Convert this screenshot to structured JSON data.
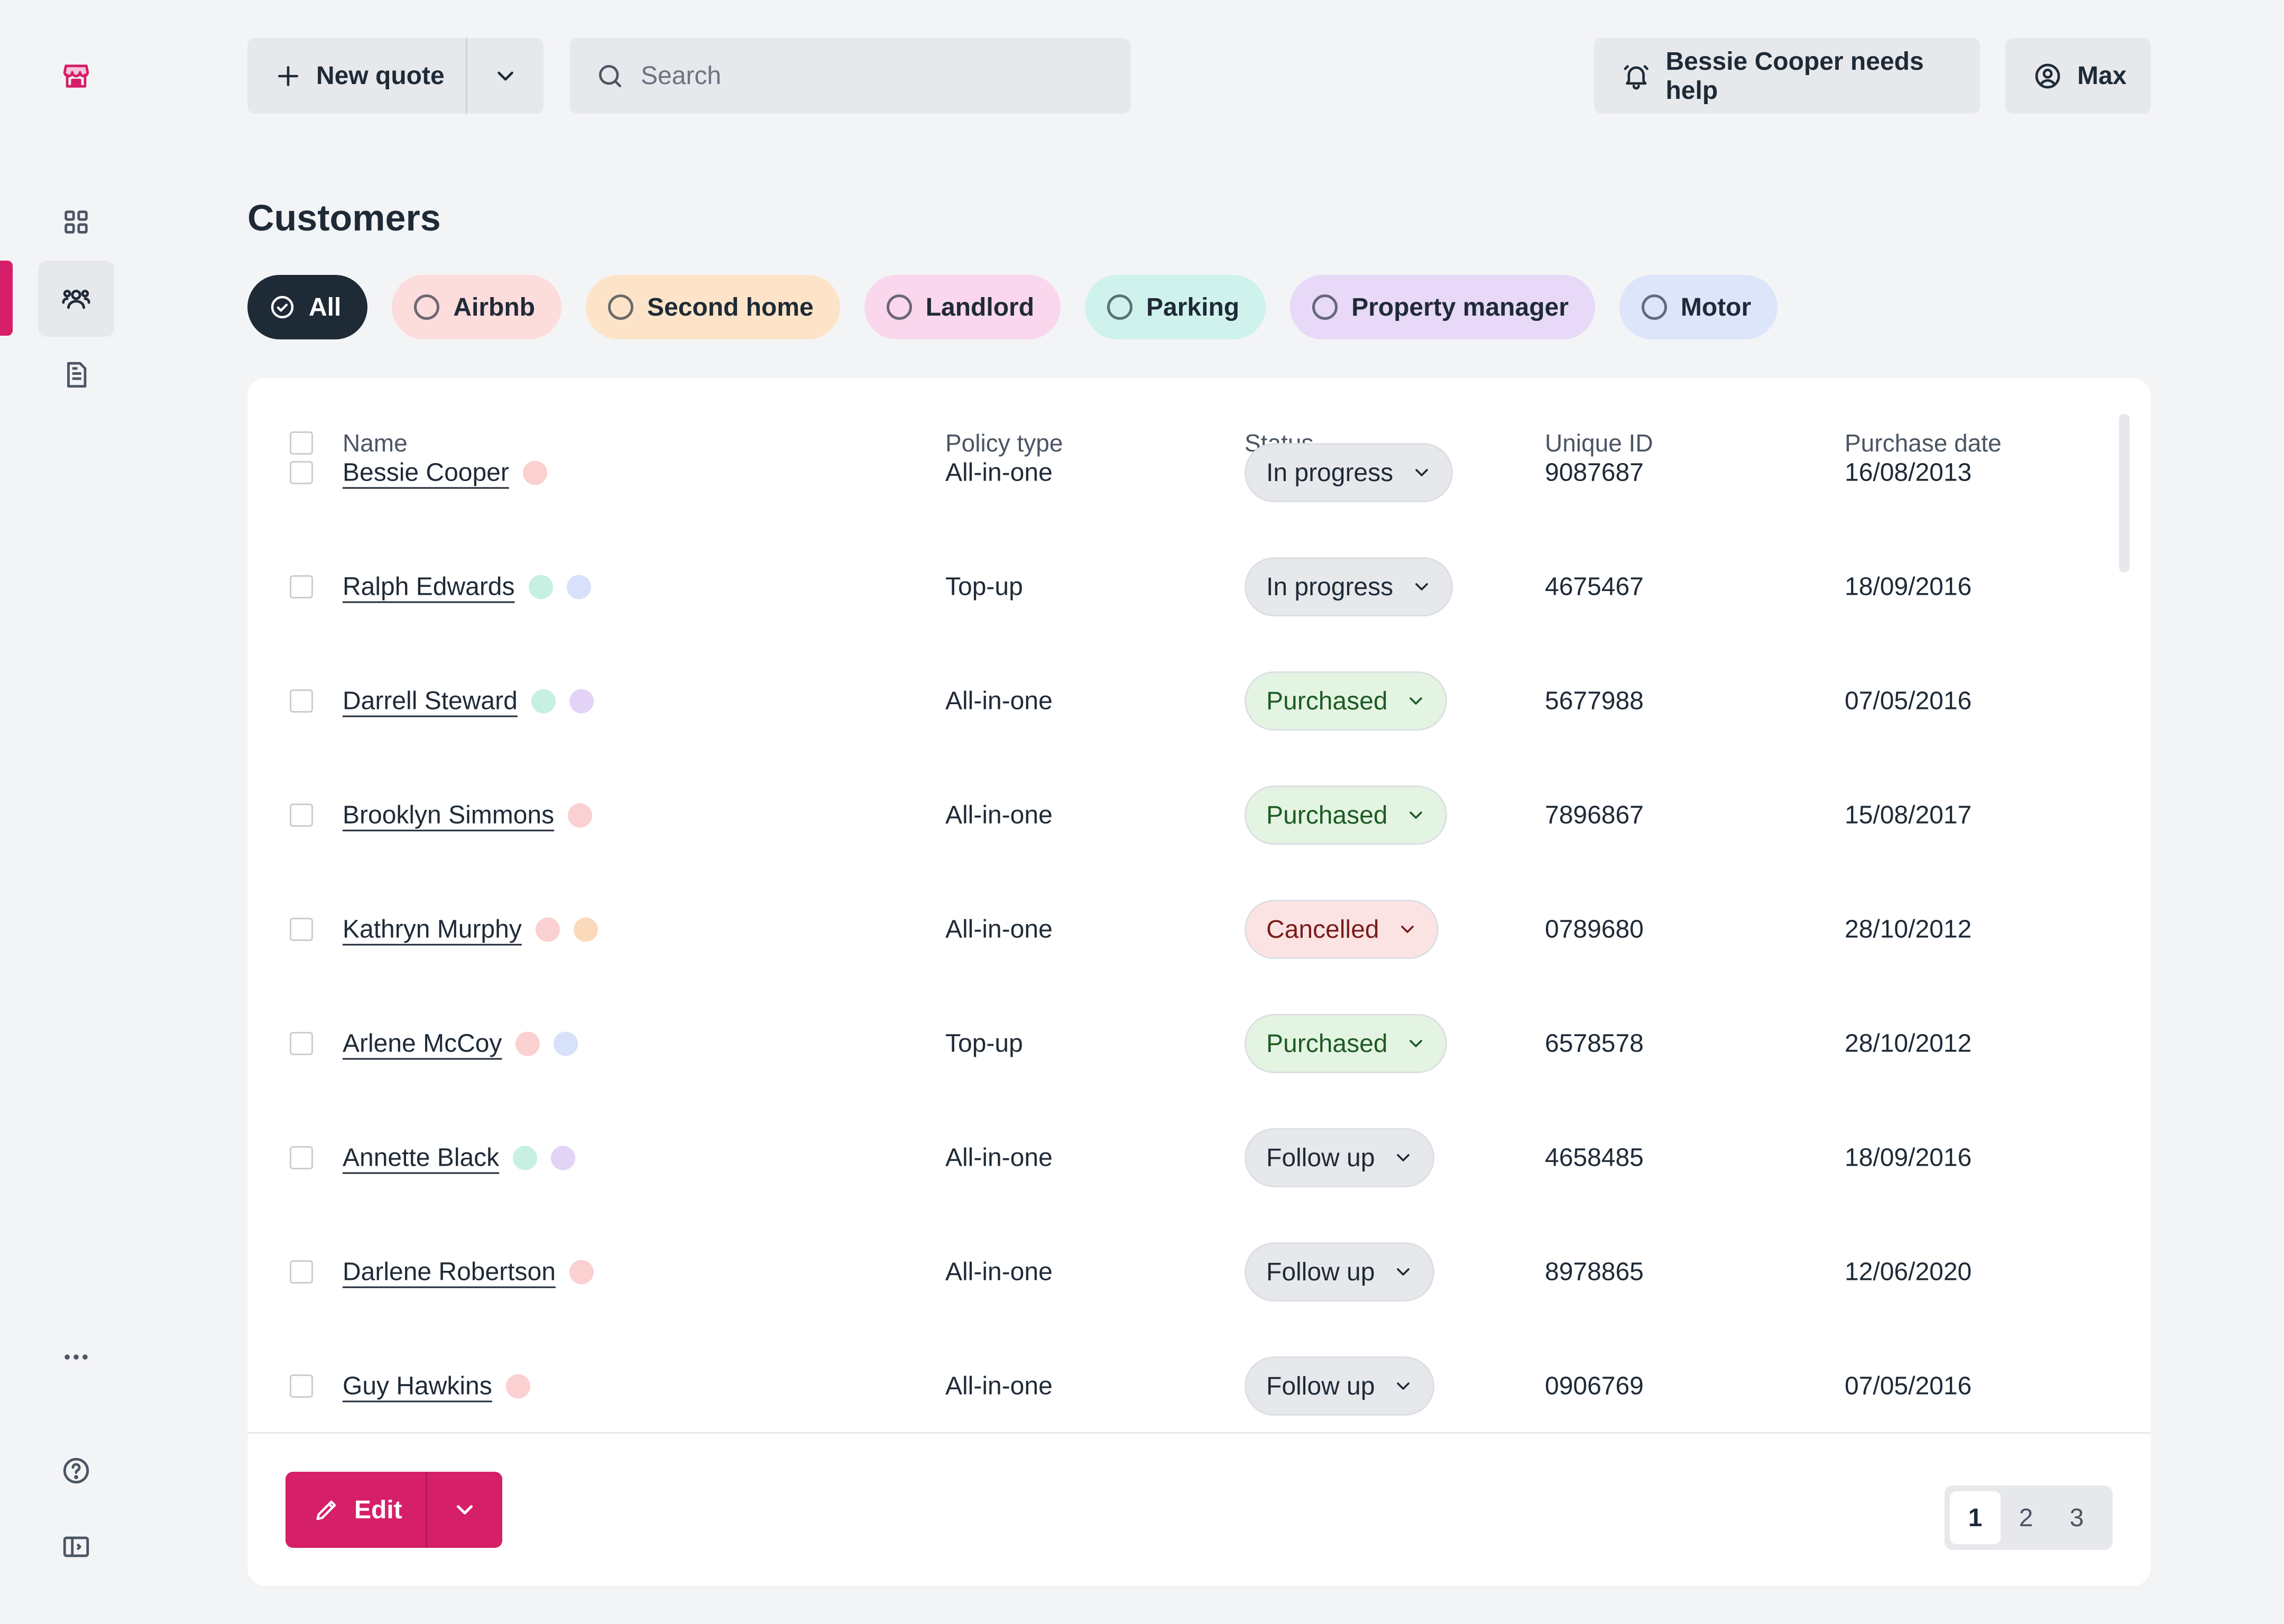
{
  "sidebar": {
    "items": [
      {
        "name": "logo",
        "icon": "shop-icon"
      },
      {
        "name": "dashboard",
        "icon": "grid-icon"
      },
      {
        "name": "customers",
        "icon": "users-icon",
        "active": true
      },
      {
        "name": "documents",
        "icon": "document-icon"
      },
      {
        "name": "more",
        "icon": "more-icon"
      },
      {
        "name": "help",
        "icon": "help-icon"
      },
      {
        "name": "collapse",
        "icon": "sidebar-toggle-icon"
      }
    ],
    "accent": "#d61f69"
  },
  "header": {
    "new_quote_label": "New quote",
    "search_placeholder": "Search",
    "notification_label": "Bessie Cooper needs help",
    "user_label": "Max"
  },
  "page": {
    "title": "Customers",
    "filters": [
      {
        "label": "All",
        "selected": true,
        "bg": "#1f2a37",
        "fg": "#ffffff"
      },
      {
        "label": "Airbnb",
        "bg": "#fddcdc",
        "fg": "#1f2a37"
      },
      {
        "label": "Second home",
        "bg": "#fde4c8",
        "fg": "#1f2a37"
      },
      {
        "label": "Landlord",
        "bg": "#fad7ec",
        "fg": "#1f2a37"
      },
      {
        "label": "Parking",
        "bg": "#cff3ec",
        "fg": "#1f2a37"
      },
      {
        "label": "Property manager",
        "bg": "#e7d9f7",
        "fg": "#1f2a37"
      },
      {
        "label": "Motor",
        "bg": "#dde5fb",
        "fg": "#1f2a37"
      }
    ]
  },
  "table": {
    "columns": [
      "Name",
      "Policy type",
      "Status",
      "Unique ID",
      "Purchase date"
    ],
    "tag_colors": {
      "airbnb": "#fbd0d0",
      "second_home": "#fbd9bb",
      "parking": "#c7efe3",
      "property_manager": "#e3d3f6",
      "motor": "#d8e1fa"
    },
    "status_styles": {
      "In progress": {
        "bg": "#e6e8eb",
        "fg": "#1f2a37"
      },
      "Purchased": {
        "bg": "#e4f4e2",
        "fg": "#1d5b24"
      },
      "Cancelled": {
        "bg": "#fce3e3",
        "fg": "#7a1c1c"
      },
      "Follow up": {
        "bg": "#e6e8eb",
        "fg": "#1f2a37"
      }
    },
    "rows": [
      {
        "name": "Bessie Cooper",
        "tags": [
          "airbnb"
        ],
        "policy": "All-in-one",
        "status": "In progress",
        "uid": "9087687",
        "date": "16/08/2013"
      },
      {
        "name": "Ralph Edwards",
        "tags": [
          "parking",
          "motor"
        ],
        "policy": "Top-up",
        "status": "In progress",
        "uid": "4675467",
        "date": "18/09/2016"
      },
      {
        "name": "Darrell Steward",
        "tags": [
          "parking",
          "property_manager"
        ],
        "policy": "All-in-one",
        "status": "Purchased",
        "uid": "5677988",
        "date": "07/05/2016"
      },
      {
        "name": "Brooklyn Simmons",
        "tags": [
          "airbnb"
        ],
        "policy": "All-in-one",
        "status": "Purchased",
        "uid": "7896867",
        "date": "15/08/2017"
      },
      {
        "name": "Kathryn Murphy",
        "tags": [
          "airbnb",
          "second_home"
        ],
        "policy": "All-in-one",
        "status": "Cancelled",
        "uid": "0789680",
        "date": "28/10/2012"
      },
      {
        "name": "Arlene McCoy",
        "tags": [
          "airbnb",
          "motor"
        ],
        "policy": "Top-up",
        "status": "Purchased",
        "uid": "6578578",
        "date": "28/10/2012"
      },
      {
        "name": "Annette Black",
        "tags": [
          "parking",
          "property_manager"
        ],
        "policy": "All-in-one",
        "status": "Follow up",
        "uid": "4658485",
        "date": "18/09/2016"
      },
      {
        "name": "Darlene Robertson",
        "tags": [
          "airbnb"
        ],
        "policy": "All-in-one",
        "status": "Follow up",
        "uid": "8978865",
        "date": "12/06/2020"
      },
      {
        "name": "Guy Hawkins",
        "tags": [
          "airbnb"
        ],
        "policy": "All-in-one",
        "status": "Follow up",
        "uid": "0906769",
        "date": "07/05/2016"
      }
    ]
  },
  "footer": {
    "edit_label": "Edit",
    "pages": [
      "1",
      "2",
      "3"
    ],
    "current_page": "1"
  }
}
